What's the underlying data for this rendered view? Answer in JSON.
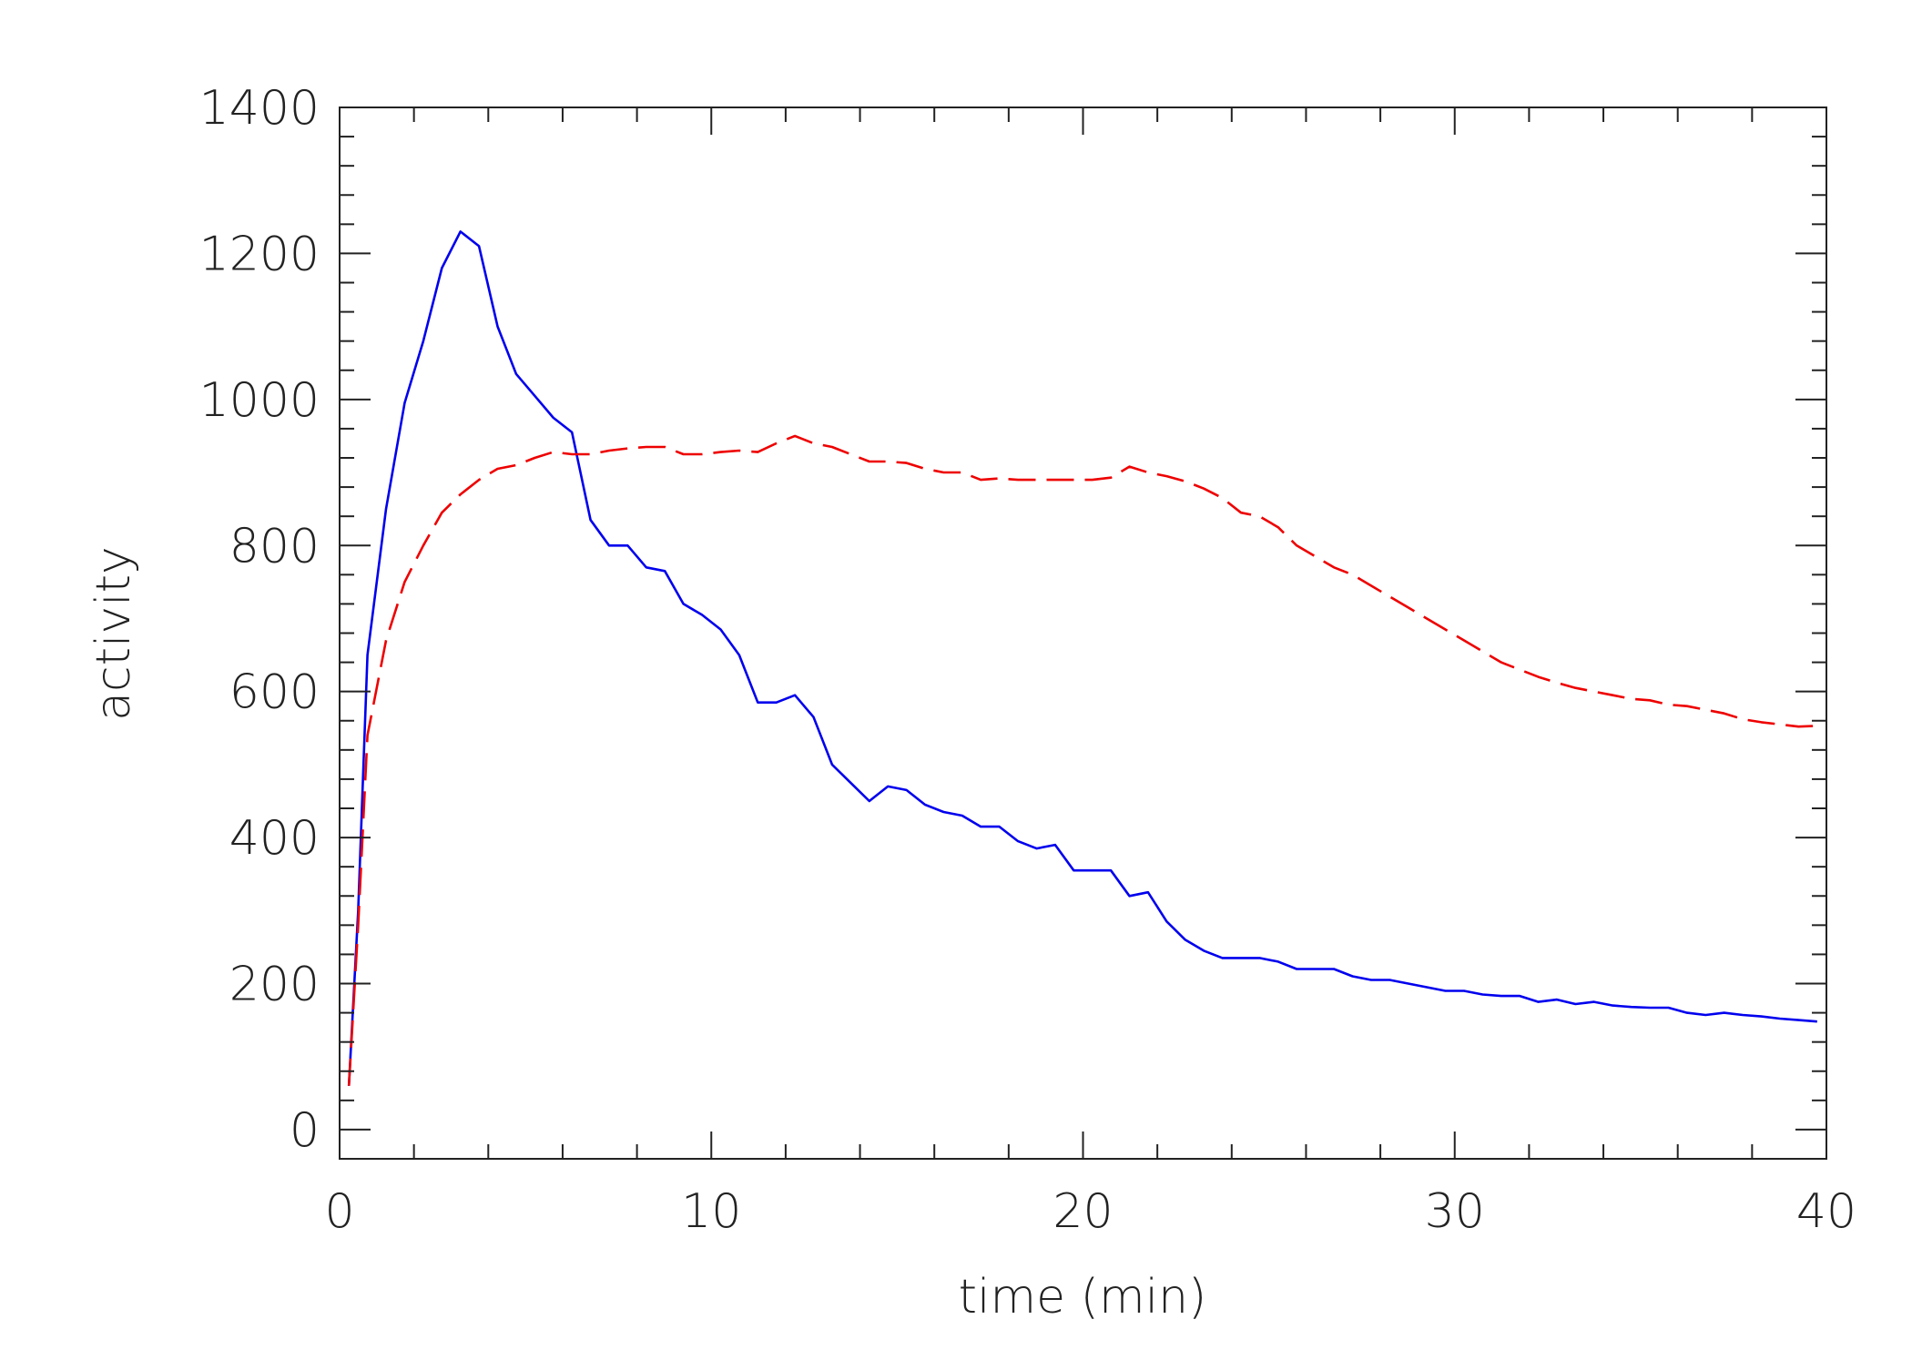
{
  "chart_data": {
    "type": "line",
    "title": "",
    "xlabel": "time (min)",
    "ylabel": "activity",
    "xlim": [
      0,
      40
    ],
    "ylim": [
      -40,
      1400
    ],
    "xticks": [
      0,
      10,
      20,
      30,
      40
    ],
    "xtick_labels": [
      "0",
      "10",
      "20",
      "30",
      "40"
    ],
    "yticks": [
      0,
      200,
      400,
      600,
      800,
      1000,
      1200,
      1400
    ],
    "ytick_labels": [
      "0",
      "200",
      "400",
      "600",
      "800",
      "1000",
      "1200",
      "1400"
    ],
    "grid": false,
    "legend": "none",
    "series": [
      {
        "style": "solid",
        "color": "#0000ee",
        "x": [
          0.25,
          0.5,
          0.75,
          1.25,
          1.75,
          2.25,
          2.75,
          3.25,
          3.75,
          4.25,
          4.75,
          5.25,
          5.75,
          6.25,
          6.75,
          7.25,
          7.75,
          8.25,
          8.75,
          9.25,
          9.75,
          10.25,
          10.75,
          11.25,
          11.75,
          12.25,
          12.75,
          13.25,
          13.75,
          14.25,
          14.75,
          15.25,
          15.75,
          16.25,
          16.75,
          17.25,
          17.75,
          18.25,
          18.75,
          19.25,
          19.75,
          20.25,
          20.75,
          21.25,
          21.75,
          22.25,
          22.75,
          23.25,
          23.75,
          24.25,
          24.75,
          25.25,
          25.75,
          26.25,
          26.75,
          27.25,
          27.75,
          28.25,
          28.75,
          29.25,
          29.75,
          30.25,
          30.75,
          31.25,
          31.75,
          32.25,
          32.75,
          33.25,
          33.75,
          34.25,
          34.75,
          35.25,
          35.75,
          36.25,
          36.75,
          37.25,
          37.75,
          38.25,
          38.75,
          39.25,
          39.75
        ],
        "values": [
          60,
          300,
          650,
          850,
          995,
          1080,
          1180,
          1230,
          1210,
          1100,
          1035,
          1005,
          975,
          955,
          835,
          800,
          800,
          770,
          765,
          720,
          705,
          685,
          650,
          585,
          585,
          595,
          565,
          500,
          475,
          450,
          470,
          465,
          445,
          435,
          430,
          415,
          415,
          395,
          385,
          390,
          355,
          355,
          355,
          320,
          325,
          285,
          260,
          245,
          235,
          235,
          235,
          230,
          220,
          220,
          220,
          210,
          205,
          205,
          200,
          195,
          190,
          190,
          185,
          183,
          183,
          175,
          178,
          172,
          175,
          170,
          168,
          167,
          167,
          160,
          157,
          160,
          157,
          155,
          152,
          150,
          148
        ]
      },
      {
        "style": "dashed",
        "color": "#ee0000",
        "x": [
          0.25,
          0.5,
          0.75,
          1.25,
          1.75,
          2.25,
          2.75,
          3.25,
          3.75,
          4.25,
          4.75,
          5.25,
          5.75,
          6.25,
          6.75,
          7.25,
          7.75,
          8.25,
          8.75,
          9.25,
          9.75,
          10.25,
          10.75,
          11.25,
          11.75,
          12.25,
          12.75,
          13.25,
          13.75,
          14.25,
          14.75,
          15.25,
          15.75,
          16.25,
          16.75,
          17.25,
          17.75,
          18.25,
          18.75,
          19.25,
          19.75,
          20.25,
          20.75,
          21.25,
          21.75,
          22.25,
          22.75,
          23.25,
          23.75,
          24.25,
          24.75,
          25.25,
          25.75,
          26.25,
          26.75,
          27.25,
          27.75,
          28.25,
          28.75,
          29.25,
          29.75,
          30.25,
          30.75,
          31.25,
          31.75,
          32.25,
          32.75,
          33.25,
          33.75,
          34.25,
          34.75,
          35.25,
          35.75,
          36.25,
          36.75,
          37.25,
          37.75,
          38.25,
          38.75,
          39.25,
          39.75
        ],
        "values": [
          60,
          280,
          540,
          670,
          750,
          800,
          845,
          870,
          890,
          905,
          910,
          920,
          928,
          925,
          925,
          930,
          933,
          935,
          935,
          925,
          925,
          928,
          930,
          928,
          940,
          950,
          940,
          935,
          925,
          915,
          915,
          913,
          905,
          900,
          900,
          890,
          892,
          890,
          890,
          890,
          890,
          890,
          893,
          908,
          900,
          895,
          888,
          878,
          865,
          845,
          840,
          825,
          800,
          785,
          770,
          760,
          745,
          730,
          715,
          700,
          685,
          670,
          655,
          640,
          630,
          620,
          612,
          605,
          600,
          595,
          590,
          588,
          582,
          580,
          575,
          570,
          562,
          558,
          555,
          552,
          553
        ]
      }
    ]
  }
}
